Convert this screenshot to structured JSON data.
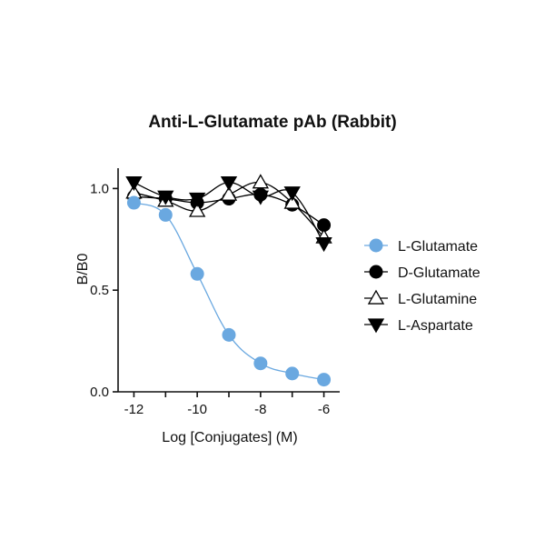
{
  "chart_data": {
    "type": "scatter",
    "title": "Anti-L-Glutamate pAb (Rabbit)",
    "xlabel": "Log [Conjugates] (M)",
    "ylabel": "B/B0",
    "xlim": [
      -12.5,
      -5.5
    ],
    "ylim": [
      0,
      1.1
    ],
    "xticks": [
      -12,
      -10,
      -8,
      -6
    ],
    "xtick_labels": [
      "-12",
      "-10",
      "-8",
      "-6"
    ],
    "yticks": [
      0,
      0.5,
      1.0
    ],
    "ytick_labels": [
      "0.0",
      "0.5",
      "1.0"
    ],
    "grid": false,
    "legend_position": "right",
    "x": [
      -12,
      -11,
      -10,
      -9,
      -8,
      -7,
      -6
    ],
    "series": [
      {
        "name": "L-Glutamate",
        "marker": "circle",
        "filled": true,
        "color": "#6aa8e0",
        "values": [
          0.93,
          0.87,
          0.58,
          0.28,
          0.14,
          0.09,
          0.06
        ],
        "fit": true
      },
      {
        "name": "D-Glutamate",
        "marker": "circle",
        "filled": true,
        "color": "#000000",
        "values": [
          0.96,
          0.95,
          0.93,
          0.95,
          0.97,
          0.92,
          0.82
        ],
        "fit": true
      },
      {
        "name": "L-Glutamine",
        "marker": "triangle-up",
        "filled": false,
        "color": "#000000",
        "values": [
          0.98,
          0.94,
          0.89,
          0.97,
          1.03,
          0.93,
          0.76
        ],
        "fit": true
      },
      {
        "name": "L-Aspartate",
        "marker": "triangle-down",
        "filled": true,
        "color": "#000000",
        "values": [
          1.03,
          0.96,
          0.95,
          1.03,
          0.96,
          0.98,
          0.73
        ],
        "fit": true
      }
    ]
  }
}
